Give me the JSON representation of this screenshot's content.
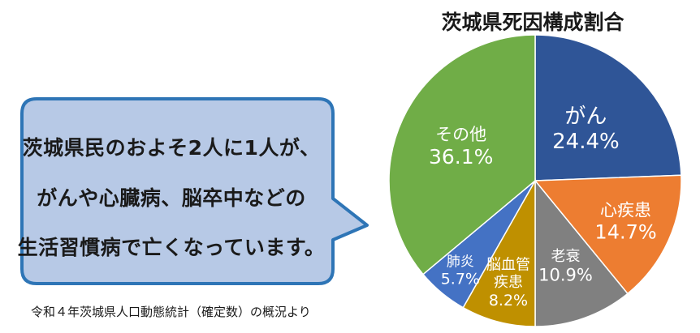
{
  "bubble": {
    "line1": "茨城県民のおよそ2人に1人が、",
    "line2": "がんや心臓病、脳卒中などの",
    "line3": "生活習慣病で亡くなっています。"
  },
  "source_note": "令和４年茨城県人口動態統計（確定数）の概況より",
  "colors": {
    "bubble_fill": "#b7c9e6",
    "bubble_stroke": "#2e75b6"
  },
  "chart_data": {
    "type": "pie",
    "title": "茨城県死因構成割合",
    "start": "12 o'clock, clockwise",
    "slices": [
      {
        "name": "がん",
        "label": [
          "がん"
        ],
        "value": 24.4,
        "value_label": "24.4%",
        "color": "#2f5597"
      },
      {
        "name": "心疾患",
        "label": [
          "心疾患"
        ],
        "value": 14.7,
        "value_label": "14.7%",
        "color": "#ed7d31"
      },
      {
        "name": "老衰",
        "label": [
          "老衰"
        ],
        "value": 10.9,
        "value_label": "10.9%",
        "color": "#808080"
      },
      {
        "name": "脳血管疾患",
        "label": [
          "脳血管",
          "疾患"
        ],
        "value": 8.2,
        "value_label": "8.2%",
        "color": "#bf9000"
      },
      {
        "name": "肺炎",
        "label": [
          "肺炎"
        ],
        "value": 5.7,
        "value_label": "5.7%",
        "color": "#4472c4"
      },
      {
        "name": "その他",
        "label": [
          "その他"
        ],
        "value": 36.1,
        "value_label": "36.1%",
        "color": "#70ad47"
      }
    ]
  }
}
